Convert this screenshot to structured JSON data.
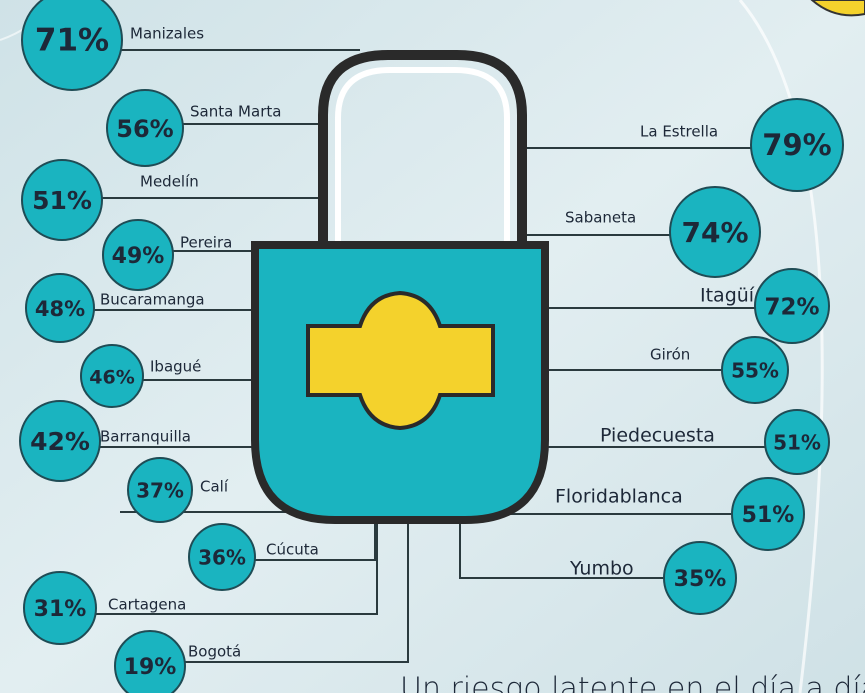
{
  "left": [
    {
      "city": "Manizales",
      "value": "71%"
    },
    {
      "city": "Santa Marta",
      "value": "56%"
    },
    {
      "city": "Medelín",
      "value": "51%"
    },
    {
      "city": "Pereira",
      "value": "49%"
    },
    {
      "city": "Bucaramanga",
      "value": "48%"
    },
    {
      "city": "Ibagué",
      "value": "46%"
    },
    {
      "city": "Barranquilla",
      "value": "42%"
    },
    {
      "city": "Calí",
      "value": "37%"
    },
    {
      "city": "Cúcuta",
      "value": "36%"
    },
    {
      "city": "Cartagena",
      "value": "31%"
    },
    {
      "city": "Bogotá",
      "value": "19%"
    }
  ],
  "right": [
    {
      "city": "La Estrella",
      "value": "79%"
    },
    {
      "city": "Sabaneta",
      "value": "74%"
    },
    {
      "city": "Itagüí",
      "value": "72%"
    },
    {
      "city": "Girón",
      "value": "55%"
    },
    {
      "city": "Piedecuesta",
      "value": "51%"
    },
    {
      "city": "Floridablanca",
      "value": "51%"
    },
    {
      "city": "Yumbo",
      "value": "35%"
    }
  ],
  "caption": "Un riesgo latente en el día a día del delito"
}
